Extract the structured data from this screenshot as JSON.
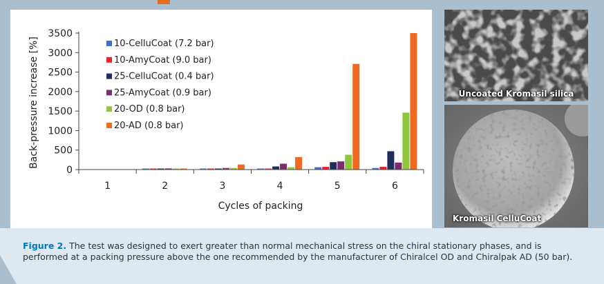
{
  "chart_data": {
    "type": "bar",
    "xlabel": "Cycles of packing",
    "ylabel": "Back-pressure increase [%]",
    "ylim": [
      0,
      3500
    ],
    "yticks": [
      0,
      500,
      1000,
      1500,
      2000,
      2500,
      3000,
      3500
    ],
    "categories": [
      "1",
      "2",
      "3",
      "4",
      "5",
      "6"
    ],
    "legend_position": "top-left",
    "series": [
      {
        "name": "10-CelluCoat (7.2 bar)",
        "color": "#3f6fc6",
        "values": [
          0,
          15,
          20,
          20,
          60,
          40
        ]
      },
      {
        "name": "10-AmyCoat (9.0 bar)",
        "color": "#e8262a",
        "values": [
          0,
          25,
          20,
          25,
          70,
          70
        ]
      },
      {
        "name": "25-CelluCoat (0.4 bar)",
        "color": "#1f2e5e",
        "values": [
          0,
          20,
          20,
          80,
          190,
          470
        ]
      },
      {
        "name": "25-AmyCoat (0.9 bar)",
        "color": "#7b2d6b",
        "values": [
          0,
          30,
          40,
          150,
          210,
          180
        ]
      },
      {
        "name": "20-OD (0.8 bar)",
        "color": "#8fc63f",
        "values": [
          0,
          20,
          40,
          60,
          380,
          1460
        ]
      },
      {
        "name": "20-AD (0.8 bar)",
        "color": "#f06a22",
        "values": [
          0,
          20,
          130,
          320,
          2710,
          3500
        ]
      }
    ]
  },
  "photos": {
    "top_caption": "Uncoated Kromasil silica",
    "bottom_caption": "Kromasil CelluCoat"
  },
  "caption": {
    "label": "Figure 2.",
    "text": " The test was designed to exert greater than normal mechanical stress on the chiral stationary phases, and is performed at a packing pressure above the one recommended by the manufacturer of Chiralcel OD and Chiralpak AD (50 bar)."
  }
}
